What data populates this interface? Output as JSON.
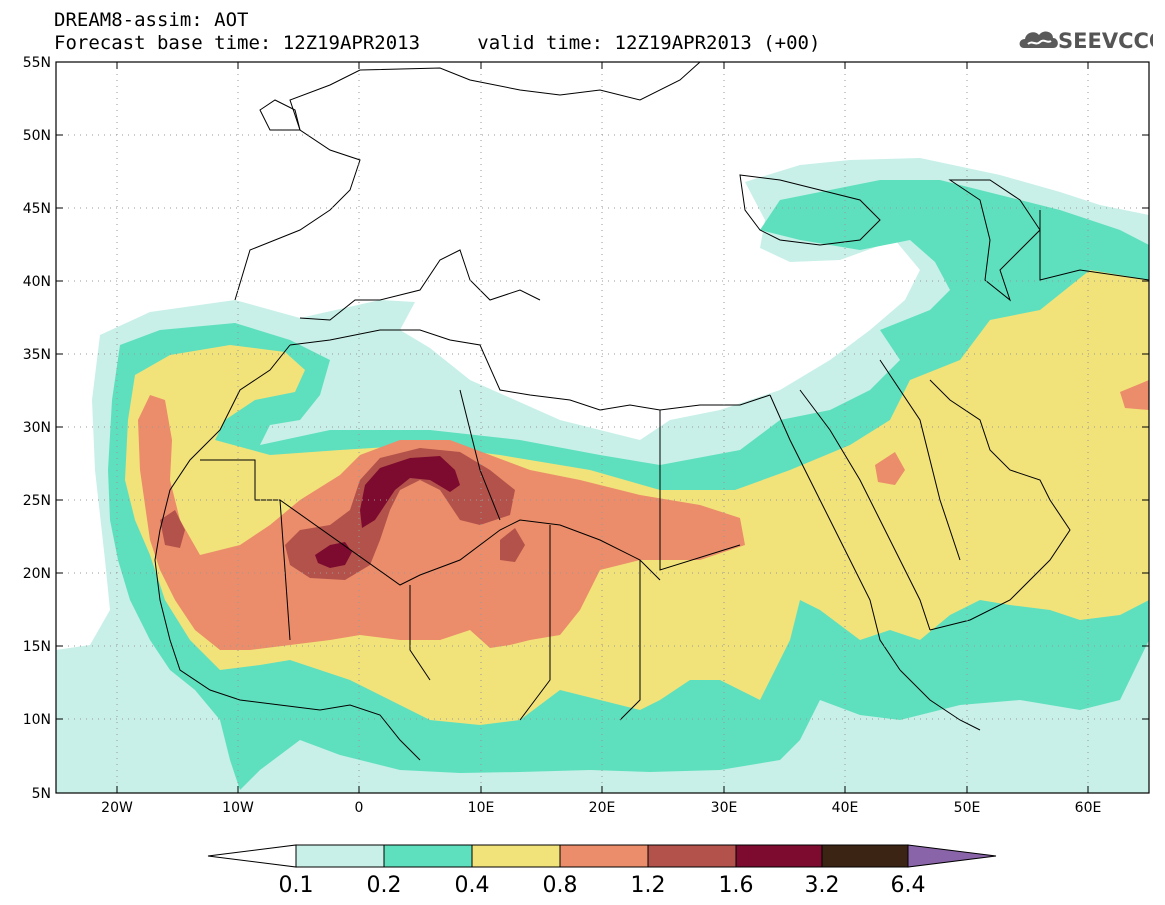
{
  "header": {
    "title": "DREAM8-assim: AOT",
    "subtitle_base": "Forecast base time: 12Z19APR2013",
    "subtitle_valid": "valid time: 12Z19APR2013 (+00)"
  },
  "logo": {
    "text": "SEEVCCC",
    "icon": "cloud-icon"
  },
  "axes": {
    "lat_labels": [
      "55N",
      "50N",
      "45N",
      "40N",
      "35N",
      "30N",
      "25N",
      "20N",
      "15N",
      "10N",
      "5N"
    ],
    "lon_labels": [
      "20W",
      "10W",
      "0",
      "10E",
      "20E",
      "30E",
      "40E",
      "50E",
      "60E"
    ],
    "lon_range": [
      -25,
      65
    ],
    "lat_range": [
      5,
      55
    ]
  },
  "legend": {
    "labels": [
      "0.1",
      "0.2",
      "0.4",
      "0.8",
      "1.2",
      "1.6",
      "3.2",
      "6.4"
    ],
    "colors": [
      "#c8f0e8",
      "#5ee0be",
      "#f2e27a",
      "#eb8c6a",
      "#b2524a",
      "#7d0a2f",
      "#3c2414",
      "#8a64a8"
    ]
  }
}
